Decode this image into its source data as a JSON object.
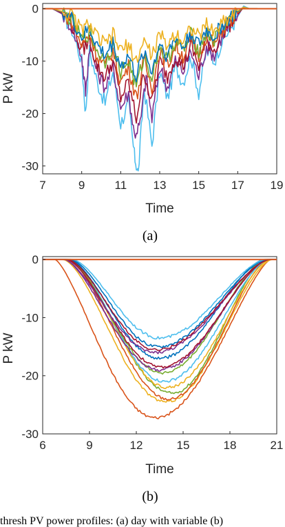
{
  "chart_data": [
    {
      "type": "line",
      "panel_caption": "(a)",
      "xlabel": "Time",
      "ylabel": "P kW",
      "xlim": [
        7,
        19
      ],
      "ylim": [
        -31.5,
        1
      ],
      "xticks": [
        7,
        9,
        11,
        13,
        15,
        17,
        19
      ],
      "yticks": [
        0,
        -10,
        -20,
        -30
      ],
      "grid": false,
      "legend": "none",
      "note": "many overlapping intermittent PV traces",
      "series": [
        {
          "color": "#4DBEEE",
          "x": [
            7.1,
            7.5,
            8.0,
            8.5,
            9.0,
            9.2,
            9.4,
            9.8,
            10.2,
            10.6,
            11.0,
            11.4,
            11.7,
            11.9,
            12.2,
            12.6,
            13.0,
            13.4,
            13.8,
            14.2,
            14.6,
            15.0,
            15.4,
            15.8,
            16.2,
            16.6,
            17.0,
            17.3,
            17.6,
            18.0
          ],
          "y": [
            0,
            0,
            -1,
            -4,
            -10,
            -20,
            -8,
            -14,
            -18,
            -12,
            -22,
            -18,
            -28,
            -31.5,
            -15,
            -26,
            -12,
            -17,
            -11,
            -14,
            -9,
            -16,
            -8,
            -10,
            -6,
            -4,
            -1.5,
            0.5,
            0,
            0
          ]
        },
        {
          "color": "#7E2F8E",
          "x": [
            7.1,
            7.5,
            8.0,
            8.5,
            9.0,
            9.2,
            9.4,
            9.8,
            10.2,
            10.6,
            11.0,
            11.4,
            11.7,
            12.0,
            12.3,
            12.6,
            13.0,
            13.4,
            13.8,
            14.2,
            14.6,
            15.0,
            15.4,
            15.8,
            16.2,
            16.6,
            17.0,
            17.3,
            17.6,
            18.0
          ],
          "y": [
            0,
            0,
            -1,
            -3.5,
            -9,
            -16,
            -7,
            -12,
            -15,
            -11,
            -19,
            -16,
            -24,
            -22,
            -13,
            -21,
            -11,
            -15,
            -10,
            -12,
            -8,
            -13,
            -7,
            -9,
            -5,
            -3.5,
            -1.2,
            0.3,
            0,
            0
          ]
        },
        {
          "color": "#A2142F",
          "x": [
            7.1,
            7.5,
            8.0,
            8.5,
            9.0,
            9.4,
            9.8,
            10.2,
            10.6,
            11.0,
            11.4,
            11.8,
            12.2,
            12.6,
            13.0,
            13.4,
            13.8,
            14.2,
            14.6,
            15.0,
            15.4,
            15.8,
            16.2,
            16.6,
            17.0,
            17.3,
            17.6,
            18.0
          ],
          "y": [
            0,
            0,
            -0.8,
            -3,
            -8,
            -6,
            -11,
            -13,
            -10,
            -17,
            -14,
            -21,
            -12,
            -18,
            -10,
            -13,
            -9,
            -11,
            -7,
            -11,
            -6,
            -8,
            -4.5,
            -3,
            -1,
            0.2,
            0,
            0
          ]
        },
        {
          "color": "#D95319",
          "x": [
            7.1,
            7.5,
            8.0,
            8.5,
            9.0,
            9.4,
            9.8,
            10.2,
            10.6,
            11.0,
            11.4,
            11.8,
            12.2,
            12.6,
            13.0,
            13.4,
            13.8,
            14.2,
            14.6,
            15.0,
            15.4,
            15.8,
            16.2,
            16.6,
            17.0,
            17.3,
            17.6,
            18.0
          ],
          "y": [
            0,
            0,
            -0.7,
            -2.5,
            -7,
            -5,
            -9,
            -11,
            -8,
            -14,
            -11,
            -17,
            -10,
            -15,
            -8,
            -11,
            -7,
            -9,
            -6,
            -9,
            -5,
            -7,
            -4,
            -2.5,
            -0.8,
            0.2,
            0,
            0
          ]
        },
        {
          "color": "#77AC30",
          "x": [
            7.1,
            7.5,
            8.0,
            8.5,
            9.0,
            9.4,
            9.8,
            10.2,
            10.6,
            11.0,
            11.4,
            11.8,
            12.2,
            12.6,
            13.0,
            13.4,
            13.8,
            14.2,
            14.6,
            15.0,
            15.4,
            15.8,
            16.2,
            16.6,
            17.0,
            17.3,
            17.6,
            18.0
          ],
          "y": [
            0,
            0,
            -0.6,
            -2.2,
            -6,
            -4.5,
            -8,
            -10,
            -7,
            -12,
            -10,
            -15,
            -9,
            -13,
            -7,
            -10,
            -6,
            -8,
            -5,
            -8,
            -4.5,
            -6,
            -3.5,
            -2,
            -0.6,
            0.2,
            0,
            0
          ]
        },
        {
          "color": "#0072BD",
          "x": [
            7.1,
            7.5,
            8.0,
            8.5,
            9.0,
            9.4,
            9.8,
            10.2,
            10.6,
            11.0,
            11.4,
            11.8,
            12.2,
            12.6,
            13.0,
            13.4,
            13.8,
            14.2,
            14.6,
            15.0,
            15.4,
            15.8,
            16.2,
            16.6,
            17.0,
            17.3,
            17.6,
            18.0
          ],
          "y": [
            0,
            0,
            -0.6,
            -2,
            -5.5,
            -4,
            -7,
            -9,
            -6.5,
            -11,
            -9,
            -13,
            -8,
            -12,
            -6.5,
            -9,
            -5.5,
            -7.5,
            -4.5,
            -7,
            -4,
            -5.5,
            -3,
            -1.8,
            -0.5,
            0.2,
            0,
            0
          ]
        },
        {
          "color": "#EDB120",
          "x": [
            7.1,
            7.5,
            8.0,
            8.5,
            9.0,
            9.4,
            9.8,
            10.2,
            10.6,
            11.0,
            11.4,
            11.8,
            12.2,
            12.6,
            13.0,
            13.4,
            13.8,
            14.2,
            14.6,
            15.0,
            15.4,
            15.8,
            16.2,
            16.6,
            17.0,
            17.3,
            17.6,
            18.0
          ],
          "y": [
            0,
            0,
            -0.5,
            -1.5,
            -4,
            -3,
            -5.5,
            -7,
            -5,
            -8,
            -7,
            -10,
            -6,
            -9,
            -5,
            -7,
            -4.5,
            -6,
            -3.5,
            -5.5,
            -3,
            -4.5,
            -2.5,
            -1.5,
            -0.4,
            0.3,
            0,
            0
          ]
        }
      ]
    },
    {
      "type": "line",
      "panel_caption": "(b)",
      "xlabel": "Time",
      "ylabel": "P kW",
      "xlim": [
        6,
        21
      ],
      "ylim": [
        -30,
        0.5
      ],
      "xticks": [
        6,
        9,
        12,
        15,
        18,
        21
      ],
      "yticks": [
        0,
        -10,
        -20,
        -30
      ],
      "grid": false,
      "legend": "none",
      "note": "smooth clear-sky PV traces",
      "series": [
        {
          "color": "#D95319",
          "start": 6.8,
          "end": 20.6,
          "peak": -27.2,
          "center": 13.2,
          "skew": 0.85
        },
        {
          "color": "#EDB120",
          "start": 7.3,
          "end": 20.7,
          "peak": -24.5,
          "center": 13.9,
          "skew": 1.0
        },
        {
          "color": "#D95319",
          "start": 7.6,
          "end": 20.5,
          "peak": -24.0,
          "center": 14.1,
          "skew": 1.0
        },
        {
          "color": "#77AC30",
          "start": 7.5,
          "end": 20.4,
          "peak": -23.0,
          "center": 14.3,
          "skew": 1.05
        },
        {
          "color": "#EDB120",
          "start": 7.7,
          "end": 20.6,
          "peak": -22.0,
          "center": 14.0,
          "skew": 1.0
        },
        {
          "color": "#4DBEEE",
          "start": 7.8,
          "end": 20.5,
          "peak": -21.0,
          "center": 13.8,
          "skew": 1.0
        },
        {
          "color": "#77AC30",
          "start": 7.6,
          "end": 20.3,
          "peak": -19.5,
          "center": 13.7,
          "skew": 1.0
        },
        {
          "color": "#7E2F8E",
          "start": 7.4,
          "end": 20.4,
          "peak": -19.0,
          "center": 13.5,
          "skew": 0.95
        },
        {
          "color": "#A2142F",
          "start": 7.5,
          "end": 20.5,
          "peak": -18.5,
          "center": 13.6,
          "skew": 1.0
        },
        {
          "color": "#0072BD",
          "start": 7.7,
          "end": 20.2,
          "peak": -17.0,
          "center": 13.5,
          "skew": 1.0
        },
        {
          "color": "#7E2F8E",
          "start": 7.4,
          "end": 20.5,
          "peak": -16.0,
          "center": 13.2,
          "skew": 0.95
        },
        {
          "color": "#A2142F",
          "start": 7.6,
          "end": 20.6,
          "peak": -15.5,
          "center": 13.3,
          "skew": 1.0
        },
        {
          "color": "#0072BD",
          "start": 7.8,
          "end": 20.4,
          "peak": -15.0,
          "center": 13.4,
          "skew": 1.0
        },
        {
          "color": "#4DBEEE",
          "start": 7.9,
          "end": 20.3,
          "peak": -13.5,
          "center": 13.5,
          "skew": 1.0
        }
      ]
    }
  ],
  "captions": {
    "a": "(a)",
    "b": "(b)",
    "footer": "thresh PV power profiles: (a) day with variable (b)"
  },
  "axes": {
    "a": {
      "xlabel": "Time",
      "ylabel": "P kW"
    },
    "b": {
      "xlabel": "Time",
      "ylabel": "P kW"
    }
  }
}
